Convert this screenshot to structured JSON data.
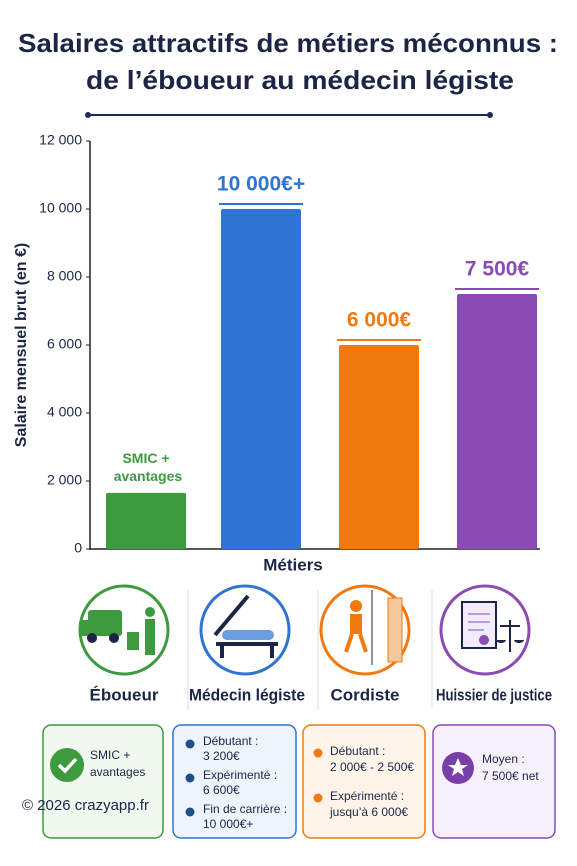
{
  "chart_data": {
    "type": "bar",
    "title": [
      "Salaires attractifs de métiers méconnus :",
      "de l’éboueur au médecin légiste"
    ],
    "y_label": "Salaire mensuel brut (en €)",
    "x_label": "Métiers",
    "categories": [
      "Éboueur",
      "Médecin légiste",
      "Cordiste",
      "Huissier de justice"
    ],
    "values": [
      1650,
      10000,
      6000,
      7500
    ],
    "value_labels": [
      "SMIC + avantages",
      "10 000€+",
      "6 000€",
      "7 500€"
    ],
    "colors": [
      "#3d9a3f",
      "#2f74d0",
      "#f07a10",
      "#8a4bb5"
    ],
    "ylim": [
      0,
      12000
    ],
    "yticks": [
      0,
      {
        "value": 2000,
        "label": "2 000"
      },
      {
        "value": 4000,
        "label": "4 000"
      },
      {
        "value": 6000,
        "label": "6 000"
      },
      {
        "value": 8000,
        "label": "8 000"
      },
      {
        "value": 10000,
        "label": "10 000"
      },
      {
        "value": 12000,
        "label": "12 000"
      }
    ],
    "grid": false
  },
  "cards": [
    {
      "lines": [
        "SMIC +",
        "avantages"
      ]
    },
    {
      "items": [
        [
          "Débutant :",
          "3 200€"
        ],
        [
          "Expérimenté :",
          "6 600€"
        ],
        [
          "Fin de carrière :",
          "10 000€+"
        ]
      ]
    },
    {
      "items": [
        [
          "Débutant :",
          "2 000€ - 2 500€"
        ],
        [
          "Expérimenté :",
          "jusqu’à 6 000€"
        ]
      ]
    },
    {
      "lines": [
        "Moyen :",
        "7 500€ net"
      ]
    }
  ],
  "footer": "© 2026 crazyapp.fr"
}
